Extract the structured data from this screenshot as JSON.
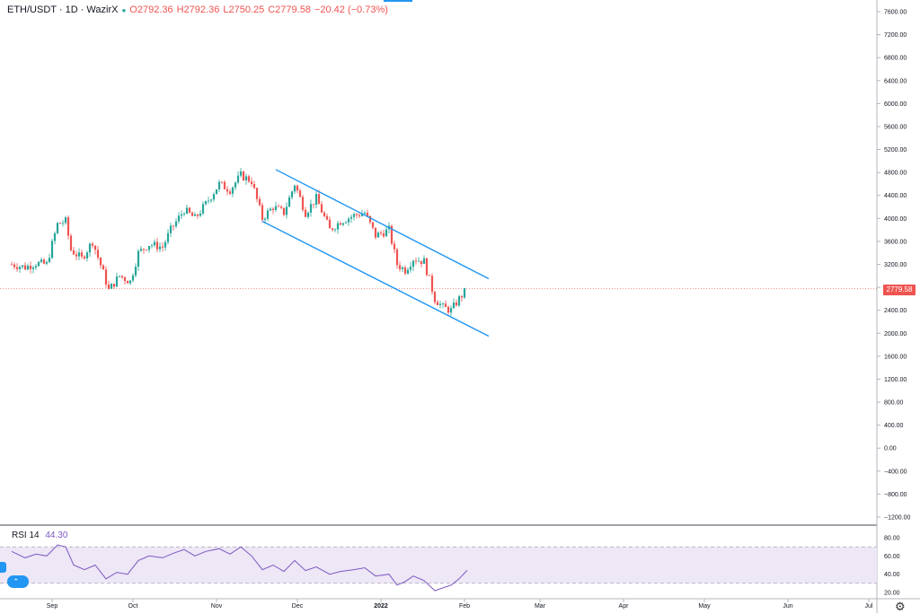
{
  "legend": {
    "symbol": "ETH/USDT · 1D · WazirX",
    "open": "O2792.36",
    "high": "H2792.36",
    "low": "L2750.25",
    "close": "C2779.58",
    "change": "−20.42 (−0.73%)"
  },
  "rsi_legend": {
    "name": "RSI 14",
    "value": "44.30"
  },
  "last_price_tag": "2779.58",
  "colors": {
    "up": "#26a69a",
    "down": "#ef5350",
    "channel": "#2196f3",
    "rsi": "#7e57c2",
    "rsi_band": "#ede7f6"
  },
  "icons": {
    "logo": "tradingview-logo-icon",
    "settings": "gear-icon"
  },
  "chart_data": [
    {
      "type": "candlestick",
      "title": "ETH/USDT · 1D · WazirX",
      "y_axis": {
        "range": [
          -1200,
          7600
        ],
        "ticks": [
          "7600.00",
          "7200.00",
          "6800.00",
          "6400.00",
          "6000.00",
          "5600.00",
          "5200.00",
          "4800.00",
          "4400.00",
          "4000.00",
          "3600.00",
          "3200.00",
          "2800.00",
          "2400.00",
          "2000.00",
          "1600.00",
          "1200.00",
          "800.00",
          "400.00",
          "0.00",
          "−400.00",
          "−800.00",
          "−1200.00"
        ]
      },
      "x_axis": {
        "ticks": [
          {
            "label": "Sep",
            "date": "2021-09-01"
          },
          {
            "label": "Oct",
            "date": "2021-10-01"
          },
          {
            "label": "Nov",
            "date": "2021-11-01"
          },
          {
            "label": "Dec",
            "date": "2021-12-01"
          },
          {
            "label": "2022",
            "date": "2022-01-01"
          },
          {
            "label": "Feb",
            "date": "2022-02-01"
          },
          {
            "label": "Mar",
            "date": "2022-03-01"
          },
          {
            "label": "Apr",
            "date": "2022-04-01"
          },
          {
            "label": "May",
            "date": "2022-05-01"
          },
          {
            "label": "Jun",
            "date": "2022-06-01"
          },
          {
            "label": "Jul",
            "date": "2022-07-01"
          }
        ]
      },
      "last_price": 2779.58,
      "close_path": [
        {
          "date": "2021-08-17",
          "close": 3200
        },
        {
          "date": "2021-08-22",
          "close": 3150
        },
        {
          "date": "2021-08-26",
          "close": 3220
        },
        {
          "date": "2021-08-30",
          "close": 3200
        },
        {
          "date": "2021-09-03",
          "close": 3900
        },
        {
          "date": "2021-09-06",
          "close": 3950
        },
        {
          "date": "2021-09-08",
          "close": 3450
        },
        {
          "date": "2021-09-12",
          "close": 3300
        },
        {
          "date": "2021-09-16",
          "close": 3600
        },
        {
          "date": "2021-09-20",
          "close": 3050
        },
        {
          "date": "2021-09-22",
          "close": 2750
        },
        {
          "date": "2021-09-26",
          "close": 3000
        },
        {
          "date": "2021-09-30",
          "close": 2900
        },
        {
          "date": "2021-10-03",
          "close": 3400
        },
        {
          "date": "2021-10-07",
          "close": 3550
        },
        {
          "date": "2021-10-12",
          "close": 3500
        },
        {
          "date": "2021-10-15",
          "close": 3800
        },
        {
          "date": "2021-10-20",
          "close": 4150
        },
        {
          "date": "2021-10-24",
          "close": 4000
        },
        {
          "date": "2021-10-28",
          "close": 4250
        },
        {
          "date": "2021-11-02",
          "close": 4600
        },
        {
          "date": "2021-11-06",
          "close": 4500
        },
        {
          "date": "2021-11-10",
          "close": 4750
        },
        {
          "date": "2021-11-14",
          "close": 4650
        },
        {
          "date": "2021-11-18",
          "close": 4000
        },
        {
          "date": "2021-11-22",
          "close": 4200
        },
        {
          "date": "2021-11-26",
          "close": 4100
        },
        {
          "date": "2021-11-30",
          "close": 4600
        },
        {
          "date": "2021-12-04",
          "close": 4100
        },
        {
          "date": "2021-12-08",
          "close": 4350
        },
        {
          "date": "2021-12-13",
          "close": 3800
        },
        {
          "date": "2021-12-17",
          "close": 3950
        },
        {
          "date": "2021-12-22",
          "close": 4050
        },
        {
          "date": "2021-12-26",
          "close": 4100
        },
        {
          "date": "2021-12-30",
          "close": 3700
        },
        {
          "date": "2022-01-04",
          "close": 3800
        },
        {
          "date": "2022-01-07",
          "close": 3200
        },
        {
          "date": "2022-01-10",
          "close": 3100
        },
        {
          "date": "2022-01-13",
          "close": 3300
        },
        {
          "date": "2022-01-17",
          "close": 3250
        },
        {
          "date": "2022-01-21",
          "close": 2600
        },
        {
          "date": "2022-01-24",
          "close": 2450
        },
        {
          "date": "2022-01-27",
          "close": 2400
        },
        {
          "date": "2022-01-30",
          "close": 2600
        },
        {
          "date": "2022-02-02",
          "close": 2780
        }
      ]
    },
    {
      "type": "line",
      "title": "RSI 14",
      "value": 44.3,
      "y_axis": {
        "ticks": [
          "80.00",
          "60.00",
          "40.00",
          "20.00"
        ],
        "bands": [
          30,
          70
        ]
      },
      "series": [
        {
          "date": "2021-08-17",
          "value": 65
        },
        {
          "date": "2021-08-22",
          "value": 58
        },
        {
          "date": "2021-08-26",
          "value": 62
        },
        {
          "date": "2021-08-30",
          "value": 60
        },
        {
          "date": "2021-09-03",
          "value": 72
        },
        {
          "date": "2021-09-06",
          "value": 70
        },
        {
          "date": "2021-09-09",
          "value": 50
        },
        {
          "date": "2021-09-13",
          "value": 45
        },
        {
          "date": "2021-09-17",
          "value": 50
        },
        {
          "date": "2021-09-21",
          "value": 35
        },
        {
          "date": "2021-09-25",
          "value": 42
        },
        {
          "date": "2021-09-29",
          "value": 40
        },
        {
          "date": "2021-10-03",
          "value": 55
        },
        {
          "date": "2021-10-07",
          "value": 60
        },
        {
          "date": "2021-10-12",
          "value": 58
        },
        {
          "date": "2021-10-16",
          "value": 63
        },
        {
          "date": "2021-10-20",
          "value": 67
        },
        {
          "date": "2021-10-24",
          "value": 60
        },
        {
          "date": "2021-10-28",
          "value": 65
        },
        {
          "date": "2021-11-02",
          "value": 68
        },
        {
          "date": "2021-11-06",
          "value": 62
        },
        {
          "date": "2021-11-10",
          "value": 70
        },
        {
          "date": "2021-11-14",
          "value": 60
        },
        {
          "date": "2021-11-18",
          "value": 45
        },
        {
          "date": "2021-11-22",
          "value": 50
        },
        {
          "date": "2021-11-26",
          "value": 43
        },
        {
          "date": "2021-11-30",
          "value": 55
        },
        {
          "date": "2021-12-04",
          "value": 44
        },
        {
          "date": "2021-12-08",
          "value": 48
        },
        {
          "date": "2021-12-13",
          "value": 40
        },
        {
          "date": "2021-12-17",
          "value": 43
        },
        {
          "date": "2021-12-22",
          "value": 45
        },
        {
          "date": "2021-12-26",
          "value": 47
        },
        {
          "date": "2021-12-30",
          "value": 38
        },
        {
          "date": "2022-01-04",
          "value": 40
        },
        {
          "date": "2022-01-07",
          "value": 28
        },
        {
          "date": "2022-01-10",
          "value": 32
        },
        {
          "date": "2022-01-13",
          "value": 38
        },
        {
          "date": "2022-01-17",
          "value": 33
        },
        {
          "date": "2022-01-21",
          "value": 22
        },
        {
          "date": "2022-01-24",
          "value": 25
        },
        {
          "date": "2022-01-27",
          "value": 28
        },
        {
          "date": "2022-01-30",
          "value": 35
        },
        {
          "date": "2022-02-02",
          "value": 44.3
        }
      ]
    }
  ],
  "channel": {
    "upper": [
      {
        "date": "2021-11-23",
        "price": 4850
      },
      {
        "date": "2022-02-10",
        "price": 2950
      }
    ],
    "lower": [
      {
        "date": "2021-11-18",
        "price": 3950
      },
      {
        "date": "2022-02-10",
        "price": 1950
      }
    ]
  }
}
